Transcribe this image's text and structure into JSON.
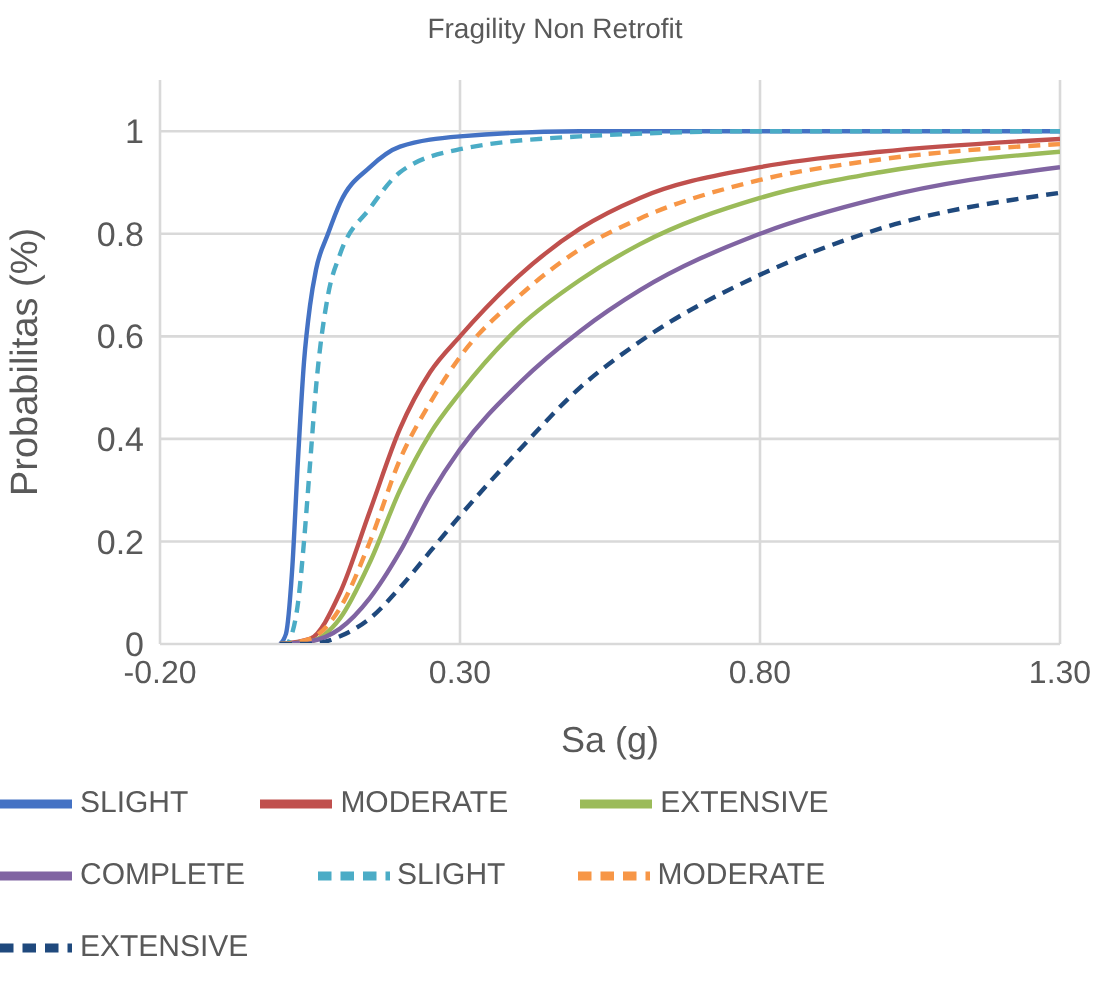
{
  "chart_data": {
    "type": "line",
    "title": "Fragility Non Retrofit",
    "xlabel": "Sa (g)",
    "ylabel": "Probabilitas (%)",
    "xlim": [
      -0.2,
      1.3
    ],
    "xticks": [
      {
        "value": -0.2,
        "label": "-0.20"
      },
      {
        "value": 0.3,
        "label": "0.30"
      },
      {
        "value": 0.8,
        "label": "0.80"
      },
      {
        "value": 1.3,
        "label": "1.30"
      }
    ],
    "ylim": [
      0,
      1.1
    ],
    "yticks": [
      0,
      0.2,
      0.4,
      0.6,
      0.8,
      1
    ],
    "grid": true,
    "legend": "bottom",
    "marker": "none",
    "series": [
      {
        "name": "SLIGHT",
        "color": "#4472c4",
        "line_style": "solid",
        "x": [
          0,
          0.01,
          0.02,
          0.03,
          0.04,
          0.05,
          0.06,
          0.08,
          0.1,
          0.15,
          0.2,
          0.3,
          0.5,
          0.8,
          1.3
        ],
        "values": [
          0,
          0.02,
          0.14,
          0.36,
          0.55,
          0.66,
          0.73,
          0.8,
          0.86,
          0.93,
          0.97,
          0.99,
          1,
          1,
          1
        ]
      },
      {
        "name": "MODERATE",
        "color": "#c0504d",
        "line_style": "solid",
        "x": [
          0,
          0.05,
          0.1,
          0.15,
          0.2,
          0.25,
          0.3,
          0.4,
          0.5,
          0.6,
          0.8,
          1.0,
          1.3
        ],
        "values": [
          0,
          0.01,
          0.1,
          0.26,
          0.42,
          0.53,
          0.6,
          0.72,
          0.81,
          0.87,
          0.93,
          0.96,
          0.985
        ]
      },
      {
        "name": "EXTENSIVE",
        "color": "#9bbb59",
        "line_style": "solid",
        "x": [
          0,
          0.05,
          0.1,
          0.15,
          0.2,
          0.25,
          0.3,
          0.4,
          0.5,
          0.6,
          0.8,
          1.0,
          1.3
        ],
        "values": [
          0,
          0.005,
          0.05,
          0.16,
          0.3,
          0.41,
          0.49,
          0.62,
          0.71,
          0.78,
          0.87,
          0.92,
          0.96
        ]
      },
      {
        "name": "COMPLETE",
        "color": "#8064a2",
        "line_style": "solid",
        "x": [
          0,
          0.05,
          0.1,
          0.15,
          0.2,
          0.25,
          0.3,
          0.4,
          0.5,
          0.6,
          0.8,
          1.0,
          1.3
        ],
        "values": [
          0,
          0.005,
          0.03,
          0.09,
          0.18,
          0.29,
          0.38,
          0.51,
          0.61,
          0.69,
          0.8,
          0.87,
          0.93
        ]
      },
      {
        "name": "SLIGHT",
        "color": "#4bacc6",
        "line_style": "dashed",
        "x": [
          0,
          0.01,
          0.02,
          0.03,
          0.04,
          0.05,
          0.06,
          0.08,
          0.1,
          0.15,
          0.2,
          0.3,
          0.5,
          0.8,
          1.3
        ],
        "values": [
          0,
          0,
          0.02,
          0.08,
          0.2,
          0.35,
          0.5,
          0.68,
          0.76,
          0.85,
          0.92,
          0.965,
          0.99,
          1,
          1
        ]
      },
      {
        "name": "MODERATE",
        "color": "#f79646",
        "line_style": "dashed",
        "x": [
          0,
          0.05,
          0.1,
          0.15,
          0.2,
          0.25,
          0.3,
          0.4,
          0.5,
          0.6,
          0.8,
          1.0,
          1.3
        ],
        "values": [
          0,
          0.01,
          0.07,
          0.2,
          0.36,
          0.47,
          0.56,
          0.68,
          0.77,
          0.83,
          0.905,
          0.945,
          0.975
        ]
      },
      {
        "name": "EXTENSIVE",
        "color": "#1f497d",
        "line_style": "dashed",
        "x": [
          0,
          0.05,
          0.1,
          0.15,
          0.2,
          0.25,
          0.3,
          0.4,
          0.5,
          0.6,
          0.8,
          1.0,
          1.3
        ],
        "values": [
          0,
          0,
          0.015,
          0.05,
          0.11,
          0.18,
          0.25,
          0.38,
          0.5,
          0.59,
          0.72,
          0.81,
          0.88
        ]
      }
    ]
  }
}
